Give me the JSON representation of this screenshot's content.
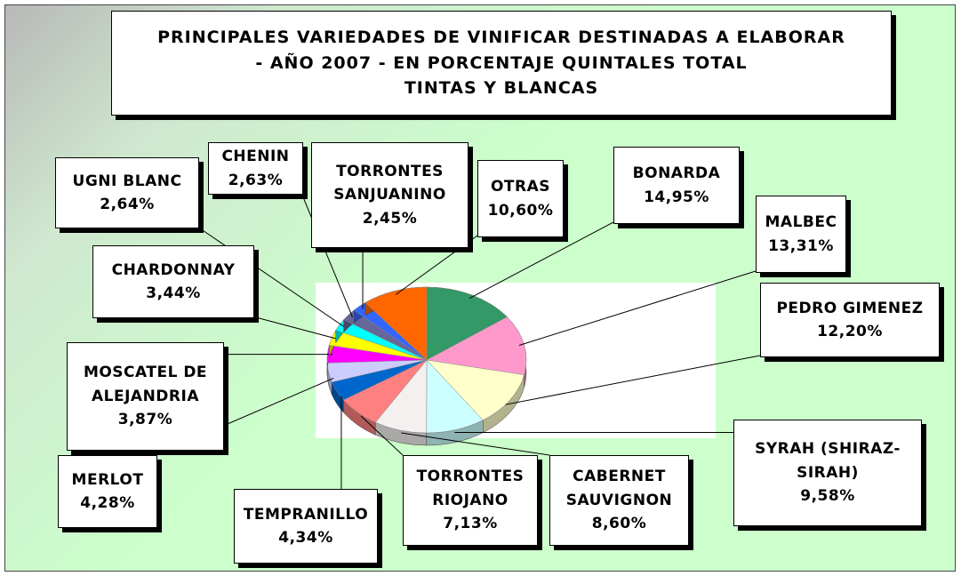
{
  "chart_data": {
    "type": "pie",
    "title": [
      "PRINCIPALES VARIEDADES DE VINIFICAR DESTINADAS A ELABORAR",
      "- AÑO 2007 - EN PORCENTAJE QUINTALES TOTAL",
      "TINTAS Y BLANCAS"
    ],
    "categories": [
      "BONARDA",
      "MALBEC",
      "PEDRO GIMENEZ",
      "SYRAH (SHIRAZ-SIRAH)",
      "CABERNET SAUVIGNON",
      "TORRONTES RIOJANO",
      "TEMPRANILLO",
      "MERLOT",
      "MOSCATEL DE ALEJANDRIA",
      "CHARDONNAY",
      "UGNI BLANC",
      "CHENIN",
      "TORRONTES SANJUANINO",
      "OTRAS"
    ],
    "values": [
      14.95,
      13.31,
      12.2,
      9.58,
      8.6,
      7.13,
      4.34,
      4.28,
      3.87,
      3.44,
      2.64,
      2.63,
      2.45,
      10.6
    ],
    "value_labels": [
      "14,95%",
      "13,31%",
      "12,20%",
      "9,58%",
      "8,60%",
      "7,13%",
      "4,34%",
      "4,28%",
      "3,87%",
      "3,44%",
      "2,64%",
      "2,63%",
      "2,45%",
      "10,60%"
    ],
    "colors": [
      "#339966",
      "#ff99cc",
      "#ffffcc",
      "#ccffff",
      "#f4f0f0",
      "#ff8080",
      "#0066cc",
      "#ccccff",
      "#ff00ff",
      "#ffff00",
      "#00ffff",
      "#666699",
      "#3366ff",
      "#ff6600"
    ]
  }
}
